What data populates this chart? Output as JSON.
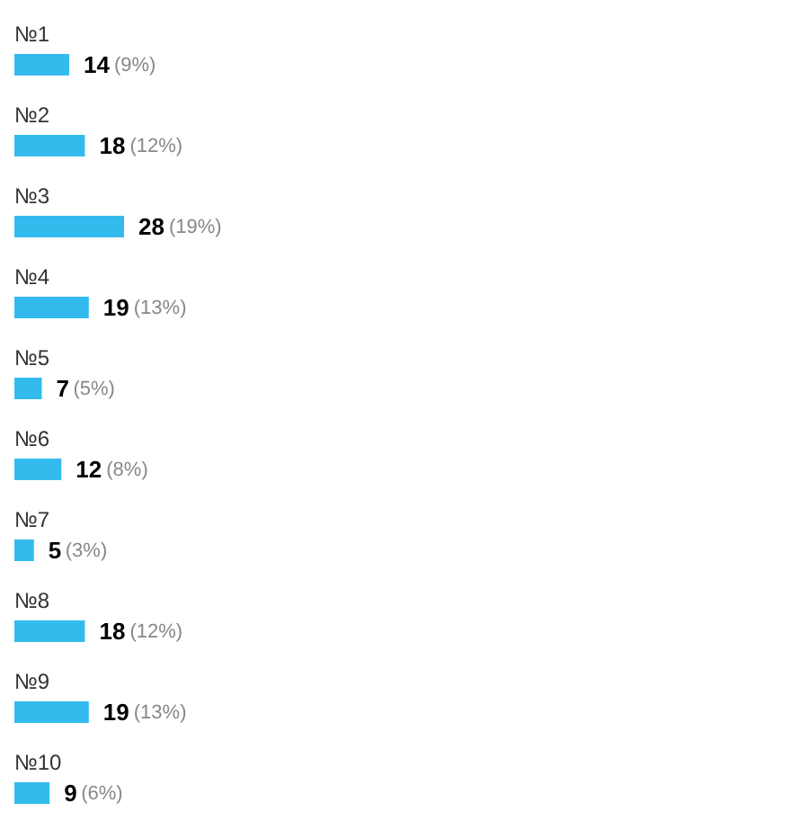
{
  "chart_data": {
    "type": "bar",
    "orientation": "horizontal",
    "categories": [
      "№1",
      "№2",
      "№3",
      "№4",
      "№5",
      "№6",
      "№7",
      "№8",
      "№9",
      "№10"
    ],
    "values": [
      14,
      18,
      28,
      19,
      7,
      12,
      5,
      18,
      19,
      9
    ],
    "color": "#33bbee",
    "data_labels": true,
    "annotations": [
      {
        "text": "(9%)",
        "x": 14,
        "y": "№1"
      },
      {
        "text": "(12%)",
        "x": 18,
        "y": "№2"
      },
      {
        "text": "(19%)",
        "x": 28,
        "y": "№3"
      },
      {
        "text": "(13%)",
        "x": 19,
        "y": "№4"
      },
      {
        "text": "(5%)",
        "x": 7,
        "y": "№5"
      },
      {
        "text": "(8%)",
        "x": 12,
        "y": "№6"
      },
      {
        "text": "(3%)",
        "x": 5,
        "y": "№7"
      },
      {
        "text": "(12%)",
        "x": 18,
        "y": "№8"
      },
      {
        "text": "(13%)",
        "x": 19,
        "y": "№9"
      },
      {
        "text": "(6%)",
        "x": 9,
        "y": "№10"
      }
    ]
  }
}
